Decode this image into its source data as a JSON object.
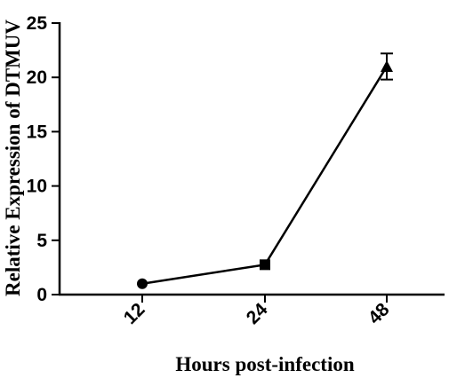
{
  "chart_data": {
    "type": "line",
    "title": "",
    "xlabel": "Hours post-infection",
    "ylabel": "Relative Expression of DTMUV",
    "categories": [
      "12",
      "24",
      "48"
    ],
    "series": [
      {
        "values": [
          1.0,
          2.75,
          21.0
        ],
        "errors": [
          0,
          0,
          1.2
        ],
        "markers": [
          "circle",
          "square",
          "triangle"
        ]
      }
    ],
    "ylim": [
      0,
      25
    ],
    "yticks": [
      0,
      5,
      10,
      15,
      20,
      25
    ],
    "grid": false,
    "legend": "none"
  },
  "colors": {
    "line": "#000000",
    "background": "#ffffff"
  }
}
